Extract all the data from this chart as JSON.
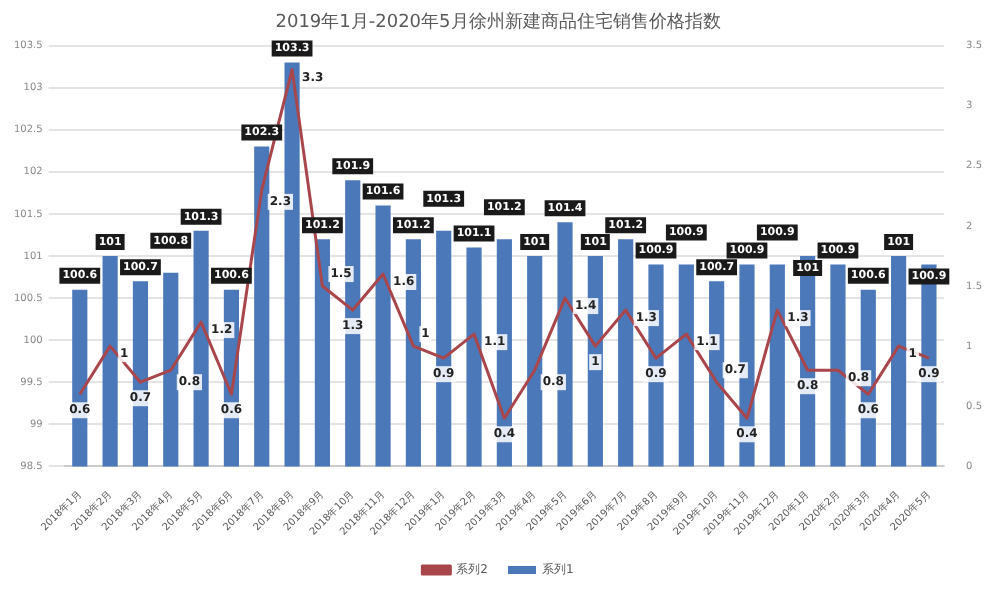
{
  "chart_data": {
    "type": "bar",
    "title": "2019年1月-2020年5月徐州新建商品住宅销售价格指数",
    "categories": [
      "2018年1月",
      "2018年2月",
      "2018年3月",
      "2018年4月",
      "2018年5月",
      "2018年6月",
      "2018年7月",
      "2018年8月",
      "2018年9月",
      "2018年10月",
      "2018年11月",
      "2018年12月",
      "2019年1月",
      "2019年2月",
      "2019年3月",
      "2019年4月",
      "2019年5月",
      "2019年6月",
      "2019年7月",
      "2019年8月",
      "2019年9月",
      "2019年10月",
      "2019年11月",
      "2019年12月",
      "2020年1月",
      "2020年2月",
      "2020年3月",
      "2020年4月",
      "2020年5月"
    ],
    "series": [
      {
        "name": "系列1",
        "color": "#4a78b8",
        "values": [
          100.6,
          101,
          100.7,
          100.8,
          101.3,
          100.6,
          102.3,
          103.3,
          101.2,
          101.9,
          101.6,
          101.2,
          101.3,
          101.1,
          101.2,
          101,
          101.4,
          101,
          101.2,
          100.9,
          100.9,
          100.7,
          100.9,
          100.9,
          101,
          100.9,
          100.6,
          101,
          100.9
        ]
      },
      {
        "name": "系列2",
        "type": "line",
        "axis": "y2",
        "color": "#a8464b",
        "values": [
          0.6,
          1,
          0.7,
          0.8,
          1.2,
          0.6,
          2.3,
          3.3,
          1.5,
          1.3,
          1.6,
          1,
          0.9,
          1.1,
          0.4,
          0.8,
          1.4,
          1,
          1.3,
          0.9,
          1.1,
          0.7,
          0.4,
          1.3,
          0.8,
          0.8,
          0.6,
          1,
          0.9
        ]
      }
    ],
    "ylim": [
      98.5,
      103.5
    ],
    "yticks": [
      98.5,
      99,
      99.5,
      100,
      100.5,
      101,
      101.5,
      102,
      102.5,
      103,
      103.5
    ],
    "y2lim": [
      0,
      3.5
    ],
    "y2ticks": [
      0,
      0.5,
      1,
      1.5,
      2,
      2.5,
      3,
      3.5
    ],
    "grid": "y",
    "legend": "bottom",
    "data_labels": true,
    "marker": "none",
    "line_style": "solid"
  }
}
